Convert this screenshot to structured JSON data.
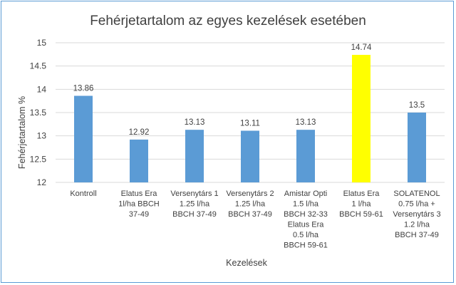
{
  "chart_data": {
    "type": "bar",
    "title": "Fehérjetartalom az egyes kezelések esetében",
    "xlabel": "Kezelések",
    "ylabel": "Fehérjetartalom %",
    "ylim": [
      12,
      15
    ],
    "yticks": [
      "12",
      "12.5",
      "13",
      "13.5",
      "14",
      "14.5",
      "15"
    ],
    "grid": true,
    "legend": "none",
    "categories": [
      [
        "Kontroll"
      ],
      [
        "Elatus Era",
        "1l/ha BBCH",
        "37-49"
      ],
      [
        "Versenytárs 1",
        "1.25 l/ha",
        "BBCH 37-49"
      ],
      [
        "Versenytárs 2",
        "1.25 l/ha",
        "BBCH 37-49"
      ],
      [
        "Amistar Opti",
        "1.5 l/ha",
        "BBCH 32-33",
        "Elatus Era",
        "0.5 l/ha",
        "BBCH 59-61"
      ],
      [
        "Elatus Era",
        "1 l/ha",
        "BBCH 59-61"
      ],
      [
        "SOLATENOL",
        "0.75 l/ha +",
        "Versenytárs 3",
        "1.2 l/ha",
        "BBCH 37-49"
      ]
    ],
    "values": [
      13.86,
      12.92,
      13.13,
      13.11,
      13.13,
      14.74,
      13.5
    ],
    "data_labels": [
      "13.86",
      "12.92",
      "13.13",
      "13.11",
      "13.13",
      "14.74",
      "13.5"
    ],
    "colors": [
      "#5b9bd5",
      "#5b9bd5",
      "#5b9bd5",
      "#5b9bd5",
      "#5b9bd5",
      "#ffff00",
      "#5b9bd5"
    ],
    "grid_color": "#d9d9d9",
    "border_color": "#5b9bd5"
  }
}
